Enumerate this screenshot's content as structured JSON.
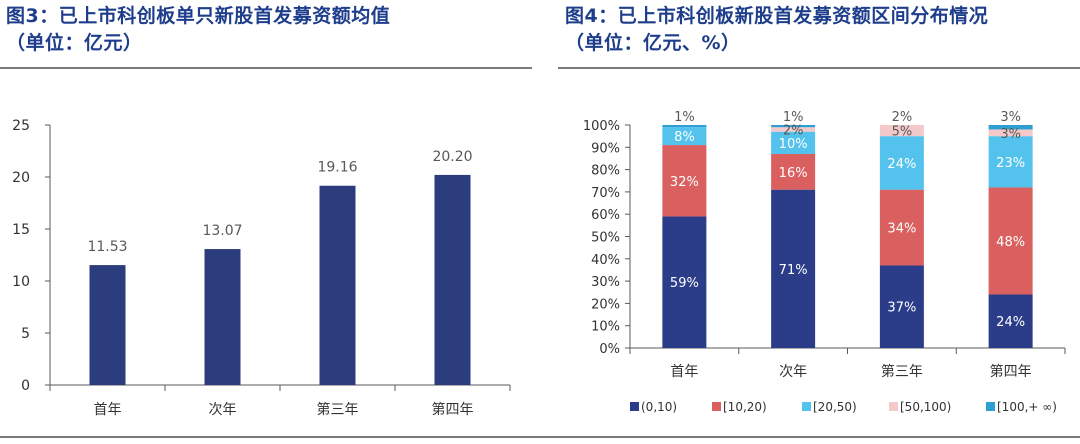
{
  "left": {
    "title_line1": "图3：已上市科创板单只新股首发募资额均值",
    "title_line2": "（单位：亿元）"
  },
  "right": {
    "title_line1": "图4：已上市科创板新股首发募资额区间分布情况",
    "title_line2": "（单位：亿元、%）"
  },
  "chart_data": [
    {
      "type": "bar",
      "categories": [
        "首年",
        "次年",
        "第三年",
        "第四年"
      ],
      "values": [
        11.53,
        13.07,
        19.16,
        20.2
      ],
      "value_labels": [
        "11.53",
        "13.07",
        "19.16",
        "20.20"
      ],
      "ylim": [
        0,
        25
      ],
      "yticks": [
        "0",
        "5",
        "10",
        "15",
        "20",
        "25"
      ],
      "grid": false,
      "colors": {
        "bar": "#2b3d7c",
        "label": "#595959"
      }
    },
    {
      "type": "bar",
      "stacked": true,
      "categories": [
        "首年",
        "次年",
        "第三年",
        "第四年"
      ],
      "ylim": [
        0,
        100
      ],
      "yticks": [
        "0%",
        "10%",
        "20%",
        "30%",
        "40%",
        "50%",
        "60%",
        "70%",
        "80%",
        "90%",
        "100%"
      ],
      "grid": false,
      "legend_position": "bottom",
      "series": [
        {
          "name": "(0,10)",
          "values": [
            59,
            71,
            37,
            24
          ],
          "labels": [
            "59%",
            "71%",
            "37%",
            "24%"
          ],
          "color": "#2b3d88"
        },
        {
          "name": "[10,20)",
          "values": [
            32,
            16,
            34,
            48
          ],
          "labels": [
            "32%",
            "16%",
            "34%",
            "48%"
          ],
          "color": "#d9605e"
        },
        {
          "name": "[20,50)",
          "values": [
            8,
            10,
            24,
            23
          ],
          "labels": [
            "8%",
            "10%",
            "24%",
            "23%"
          ],
          "color": "#53c3ee"
        },
        {
          "name": "[50,100)",
          "values": [
            0,
            2,
            5,
            3
          ],
          "labels": [
            "",
            "2%",
            "5%",
            "3%"
          ],
          "color": "#f4c9c9"
        },
        {
          "name": "[100,+ ∞)",
          "values": [
            1,
            1,
            2,
            3
          ],
          "labels": [
            "1%",
            "1%",
            "2%",
            "3%"
          ],
          "color": "#2e9fd3"
        }
      ]
    }
  ]
}
